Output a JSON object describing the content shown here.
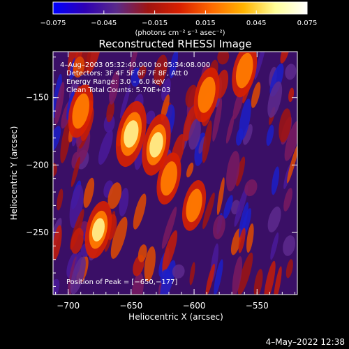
{
  "chart_data": {
    "type": "heatmap",
    "title": "Reconstructed RHESSI Image",
    "xlabel": "Heliocentric X (arcsec)",
    "ylabel": "Heliocentric Y (arcsec)",
    "xlim": [
      -712,
      -518
    ],
    "ylim": [
      -296,
      -116
    ],
    "x_ticks": [
      -700,
      -650,
      -600,
      -550
    ],
    "y_ticks": [
      -150,
      -200,
      -250
    ],
    "x_tick_labels": [
      "−700",
      "−650",
      "−600",
      "−550"
    ],
    "y_tick_labels": [
      "−150",
      "−200",
      "−250"
    ],
    "colorbar": {
      "min": -0.075,
      "max": 0.075,
      "ticks": [
        -0.075,
        -0.045,
        -0.015,
        0.015,
        0.045,
        0.075
      ],
      "tick_labels": [
        "−0.075",
        "−0.045",
        "−0.015",
        "0.015",
        "0.045",
        "0.075"
      ],
      "units_label": "(photons cm⁻² s⁻¹ asec⁻²)",
      "colors": [
        "#0000ff",
        "#2e00b4",
        "#5a2a8a",
        "#a01410",
        "#d82000",
        "#ff6a00",
        "#ffb400",
        "#ffff99",
        "#ffffff"
      ]
    },
    "info": [
      "4–Aug–2003 05:32:40.000 to 05:34:08.000",
      "Detectors: 3F 4F 5F 6F 7F 8F, Att 0",
      "Energy Range: 3.0 – 6.0 keV",
      "Clean     Total Counts: 5.70E+03"
    ],
    "peak_label": "Position of Peak = [−650,−177]",
    "peak": {
      "x": -650,
      "y": -177
    },
    "bright_regions": [
      {
        "x": -650,
        "y": -177,
        "intensity": 1.0
      },
      {
        "x": -630,
        "y": -185,
        "intensity": 0.85
      },
      {
        "x": -676,
        "y": -248,
        "intensity": 0.7
      },
      {
        "x": -690,
        "y": -160,
        "intensity": 0.55
      },
      {
        "x": -590,
        "y": -148,
        "intensity": 0.6
      },
      {
        "x": -560,
        "y": -130,
        "intensity": 0.55
      },
      {
        "x": -620,
        "y": -210,
        "intensity": 0.5
      },
      {
        "x": -600,
        "y": -230,
        "intensity": 0.45
      }
    ]
  },
  "footer": {
    "timestamp": "4–May–2022 12:38"
  }
}
